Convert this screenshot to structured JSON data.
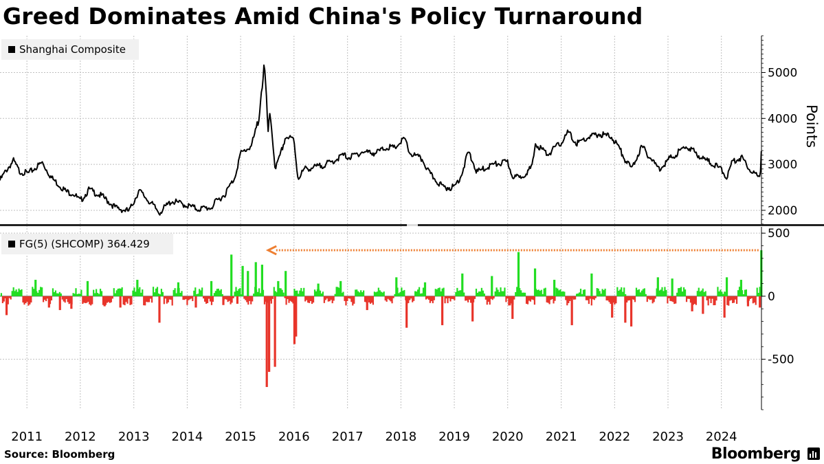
{
  "title": "Greed Dominates Amid China's Policy Turnaround",
  "footer": {
    "source": "Source: Bloomberg",
    "brand": "Bloomberg"
  },
  "colors": {
    "line": "#000000",
    "positive": "#22dd22",
    "negative": "#e8342a",
    "arrow": "#ee7f32",
    "grid": "#bfbfbf",
    "legend_bg": "#f1f1f1"
  },
  "chart_data": [
    {
      "type": "line",
      "title": "",
      "series": [
        {
          "name": "Shanghai Composite"
        }
      ],
      "ylabel": "Points",
      "ylim": [
        1700,
        5800
      ],
      "yticks": [
        2000,
        3000,
        4000,
        5000
      ],
      "xlim": [
        "2010-07-01",
        "2024-10-01"
      ],
      "grid": true,
      "legend_position": "top-left",
      "x": [
        "2010-07-01",
        "2010-08-15",
        "2010-10-01",
        "2010-11-10",
        "2011-01-10",
        "2011-04-15",
        "2011-06-20",
        "2011-09-30",
        "2011-11-15",
        "2011-12-31",
        "2012-03-01",
        "2012-06-01",
        "2012-09-01",
        "2012-11-30",
        "2013-02-05",
        "2013-04-15",
        "2013-06-25",
        "2013-09-15",
        "2013-11-15",
        "2014-03-15",
        "2014-06-15",
        "2014-07-15",
        "2014-09-15",
        "2014-11-20",
        "2014-12-31",
        "2015-03-15",
        "2015-04-30",
        "2015-06-12",
        "2015-07-08",
        "2015-07-24",
        "2015-08-26",
        "2015-09-20",
        "2015-11-05",
        "2015-12-31",
        "2016-01-28",
        "2016-03-15",
        "2016-06-15",
        "2016-09-15",
        "2016-11-30",
        "2017-01-15",
        "2017-04-10",
        "2017-07-15",
        "2017-09-30",
        "2017-11-15",
        "2018-01-26",
        "2018-03-01",
        "2018-05-30",
        "2018-07-15",
        "2018-10-18",
        "2018-12-31",
        "2019-02-15",
        "2019-04-08",
        "2019-06-06",
        "2019-09-15",
        "2019-12-31",
        "2020-02-03",
        "2020-03-20",
        "2020-06-15",
        "2020-07-09",
        "2020-09-30",
        "2020-12-31",
        "2021-02-18",
        "2021-04-15",
        "2021-07-01",
        "2021-09-15",
        "2021-12-13",
        "2022-01-31",
        "2022-03-15",
        "2022-04-26",
        "2022-07-05",
        "2022-10-31",
        "2022-12-31",
        "2023-05-09",
        "2023-08-31",
        "2023-10-31",
        "2024-01-15",
        "2024-02-05",
        "2024-03-20",
        "2024-05-20",
        "2024-07-15",
        "2024-09-13",
        "2024-09-24",
        "2024-09-30"
      ],
      "values": [
        2650,
        2880,
        3080,
        2850,
        2800,
        3040,
        2700,
        2400,
        2370,
        2200,
        2450,
        2300,
        2050,
        1980,
        2430,
        2200,
        1950,
        2200,
        2150,
        2030,
        2060,
        2180,
        2350,
        2700,
        3230,
        3400,
        3900,
        5170,
        3700,
        4050,
        2900,
        3100,
        3600,
        3540,
        2700,
        2900,
        2950,
        3050,
        3200,
        3150,
        3270,
        3250,
        3380,
        3350,
        3560,
        3250,
        3100,
        2800,
        2500,
        2500,
        2750,
        3270,
        2830,
        2990,
        3050,
        2750,
        2700,
        2930,
        3450,
        3220,
        3470,
        3700,
        3450,
        3580,
        3660,
        3600,
        3360,
        3100,
        2900,
        3390,
        2900,
        3090,
        3400,
        3120,
        3020,
        2850,
        2700,
        3080,
        3150,
        2900,
        2700,
        2900,
        3340
      ]
    },
    {
      "type": "bar",
      "title": "",
      "series": [
        {
          "name": "FG(5) (SHCOMP) 364.429"
        }
      ],
      "ylim": [
        -900,
        550
      ],
      "yticks": [
        -500,
        0,
        500
      ],
      "grid": true,
      "legend_position": "top-left",
      "annotation": "arrow from latest value pointing back to the prior peak of similar magnitude",
      "x": [
        "2010-08-15",
        "2011-03-01",
        "2011-06-01",
        "2011-08-15",
        "2011-11-01",
        "2012-02-20",
        "2012-06-15",
        "2012-10-01",
        "2013-01-25",
        "2013-06-25",
        "2013-11-01",
        "2014-03-01",
        "2014-06-15",
        "2014-09-05",
        "2014-10-30",
        "2014-12-10",
        "2015-01-15",
        "2015-02-20",
        "2015-04-15",
        "2015-05-28",
        "2015-06-29",
        "2015-07-15",
        "2015-08-24",
        "2015-09-15",
        "2015-11-05",
        "2016-01-04",
        "2016-01-15",
        "2016-06-15",
        "2016-11-15",
        "2017-05-15",
        "2017-12-01",
        "2018-02-09",
        "2018-06-15",
        "2018-10-11",
        "2019-02-25",
        "2019-05-06",
        "2019-09-15",
        "2020-02-03",
        "2020-03-15",
        "2020-07-06",
        "2020-11-15",
        "2021-03-15",
        "2021-07-28",
        "2021-12-15",
        "2022-03-15",
        "2022-04-25",
        "2022-10-24",
        "2023-01-30",
        "2023-06-15",
        "2023-08-28",
        "2024-01-22",
        "2024-02-07",
        "2024-05-15",
        "2024-07-01",
        "2024-09-20",
        "2024-09-30"
      ],
      "values": [
        -150,
        130,
        -90,
        -110,
        -100,
        120,
        -80,
        -90,
        130,
        -210,
        110,
        -90,
        120,
        -70,
        330,
        -60,
        240,
        200,
        270,
        250,
        -720,
        -600,
        -560,
        120,
        200,
        -380,
        -320,
        100,
        120,
        -110,
        150,
        -250,
        110,
        -230,
        180,
        -200,
        160,
        -180,
        350,
        220,
        130,
        -230,
        180,
        -170,
        -210,
        -240,
        150,
        140,
        -120,
        -140,
        -170,
        150,
        130,
        -80,
        -90,
        364.429
      ]
    }
  ],
  "x_tick_labels": [
    "2011",
    "2012",
    "2013",
    "2014",
    "2015",
    "2016",
    "2017",
    "2018",
    "2019",
    "2020",
    "2021",
    "2022",
    "2023",
    "2024"
  ]
}
